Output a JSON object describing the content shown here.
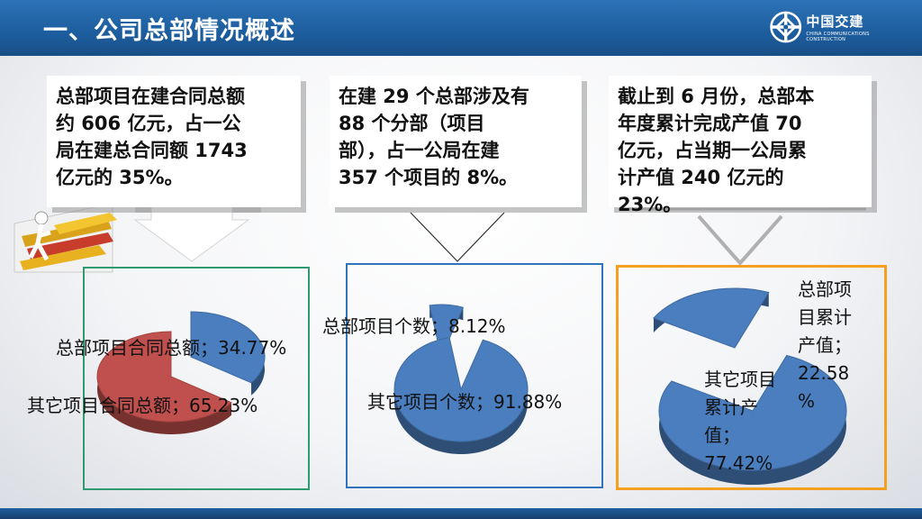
{
  "header": {
    "title": "一、公司总部情况概述"
  },
  "logo": {
    "name_cn": "中国交建",
    "name_en": "CHINA COMMUNICATIONS CONSTRUCTION"
  },
  "callouts": [
    {
      "text": "总部项目在建合同总额\n约 606 亿元，占一公\n局在建总合同额 1743\n亿元的 35%。"
    },
    {
      "text": "在建 29 个总部涉及有\n88 个分部（项目\n部），占一公局在建\n357 个项目的 8%。"
    },
    {
      "text": "截止到 6 月份，总部本\n年度累计完成产值 70\n亿元，占当期一公局累\n计产值 240 亿元的\n23%。"
    }
  ],
  "chart_data": [
    {
      "type": "pie",
      "series": [
        {
          "name": "总部项目合同总额",
          "value": 34.77,
          "label": "总部项目合同总额；34.77%"
        },
        {
          "name": "其它项目合同总额",
          "value": 65.23,
          "label": "其它项目合同总额；65.23%"
        }
      ],
      "colors": [
        "#4a7ebf",
        "#c0504d"
      ]
    },
    {
      "type": "pie",
      "series": [
        {
          "name": "总部项目个数",
          "value": 8.12,
          "label": "总部项目个数；8.12%"
        },
        {
          "name": "其它项目个数",
          "value": 91.88,
          "label": "其它项目个数；91.88%"
        }
      ],
      "colors": [
        "#4a7ebf",
        "#4a7ebf"
      ]
    },
    {
      "type": "pie",
      "series": [
        {
          "name": "总部项目累计产值",
          "value": 22.58,
          "label": "总部项\n目累计\n产值；\n22.58\n%"
        },
        {
          "name": "其它项目累计产值",
          "value": 77.42,
          "label": "其它项目\n累计产\n值；\n77.42%"
        }
      ],
      "colors": [
        "#4a7ebf",
        "#4a7ebf"
      ]
    }
  ]
}
